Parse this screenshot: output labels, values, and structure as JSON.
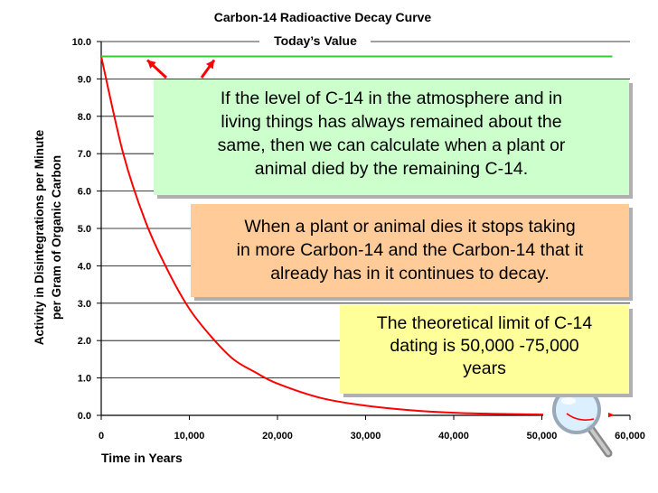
{
  "chart_data": {
    "type": "line",
    "title": "Carbon-14 Radioactive Decay Curve",
    "xlabel": "Time in Years",
    "ylabel": "Activity in Disintegrations per Minute per Gram of Organic Carbon",
    "xlim": [
      0,
      60000
    ],
    "ylim": [
      0,
      10
    ],
    "x_ticks": [
      "0",
      "10,000",
      "20,000",
      "30,000",
      "40,000",
      "50,000",
      "60,000"
    ],
    "y_ticks": [
      "0.0",
      "1.0",
      "2.0",
      "3.0",
      "4.0",
      "5.0",
      "6.0",
      "7.0",
      "8.0",
      "9.0",
      "10.0"
    ],
    "grid": true,
    "series": [
      {
        "color": "#ff0000",
        "x": [
          0,
          2500,
          5000,
          7500,
          10000,
          12500,
          15000,
          17500,
          20000,
          25000,
          30000,
          35000,
          40000,
          45000,
          50000,
          55000,
          57000
        ],
        "y": [
          9.6,
          7.0,
          5.2,
          3.9,
          2.85,
          2.1,
          1.5,
          1.15,
          0.85,
          0.46,
          0.26,
          0.14,
          0.07,
          0.04,
          0.02,
          0.01,
          0.01
        ]
      },
      {
        "name": "Today’s Value",
        "color": "#33cc33",
        "x": [
          0,
          58000
        ],
        "y": [
          9.6,
          9.6
        ]
      }
    ]
  },
  "annotations": {
    "green_box": [
      "If the level of C-14 in the atmosphere and in",
      "living things has always remained about the",
      "same, then we can calculate when a plant or",
      "animal died by the remaining C-14."
    ],
    "orange_box": [
      "When a plant or animal dies it stops taking",
      "in more Carbon-14 and the Carbon-14 that it",
      "already has in it continues to decay."
    ],
    "yellow_box": [
      "The theoretical limit of C-14",
      "dating is 50,000 -75,000",
      "years"
    ]
  },
  "colors": {
    "curve": "#ff0000",
    "todays_value_line": "#33cc33",
    "green_box": "#ccffcc",
    "orange_box": "#ffcc99",
    "yellow_box": "#ffff99"
  },
  "icons": [
    "magnifying-glass-icon"
  ]
}
